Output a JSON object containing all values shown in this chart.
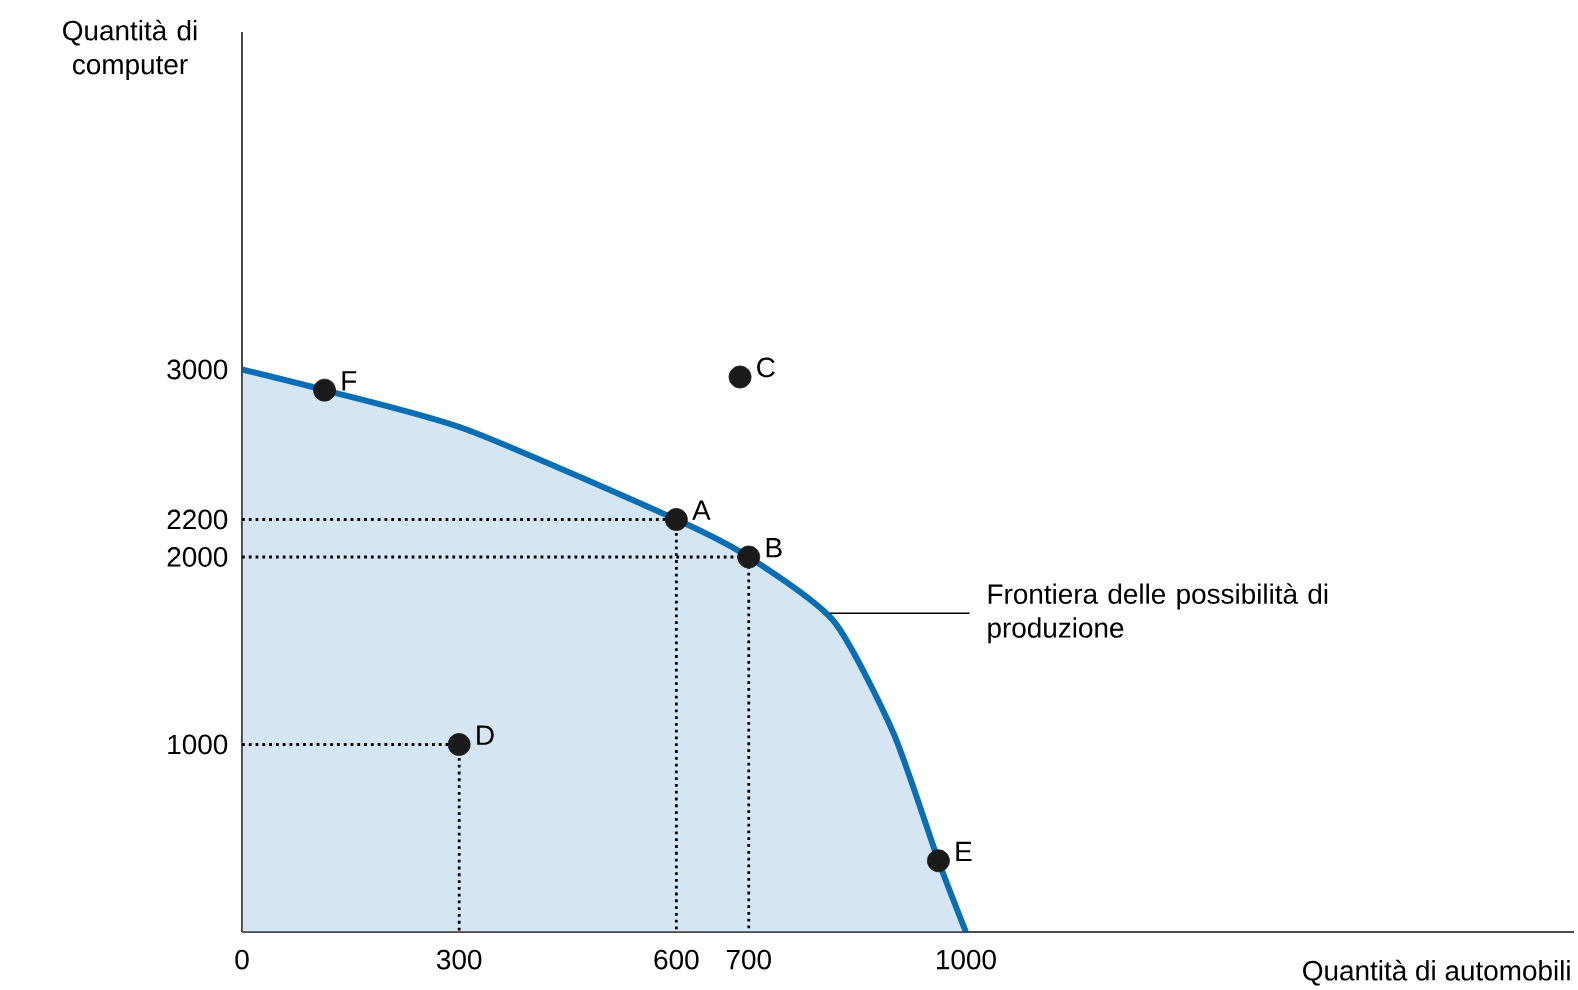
{
  "chart_data": {
    "type": "area",
    "xlabel": "Quantità di automobili",
    "ylabel": "Quantità di computer",
    "xlim": [
      0,
      1840
    ],
    "ylim": [
      0,
      4800
    ],
    "xticks": [
      0,
      300,
      600,
      700,
      1000
    ],
    "yticks": [
      1000,
      2000,
      2200,
      3000
    ],
    "grid": false,
    "series": [
      {
        "name": "Frontiera delle possibilità di produzione",
        "color": "#0a6eb4",
        "x": [
          0,
          114,
          310,
          600,
          700,
          817,
          900,
          962,
          1000
        ],
        "values": [
          3000,
          2890,
          2680,
          2200,
          2000,
          1660,
          1060,
          380,
          0
        ]
      },
      {
        "type": "line",
        "line_style": "dotted",
        "color": "#000000",
        "x": [
          0,
          600,
          600
        ],
        "values": [
          2200,
          2200,
          0
        ]
      },
      {
        "type": "line",
        "line_style": "dotted",
        "color": "#000000",
        "x": [
          0,
          700,
          700
        ],
        "values": [
          2000,
          2000,
          0
        ]
      },
      {
        "type": "line",
        "line_style": "dotted",
        "color": "#000000",
        "x": [
          0,
          300,
          300
        ],
        "values": [
          1000,
          1000,
          0
        ]
      },
      {
        "type": "scatter",
        "color": "#1a1a1a",
        "x": [
          600,
          700,
          688,
          300,
          962,
          114
        ],
        "values": [
          2200,
          2000,
          2960,
          1000,
          380,
          2890
        ]
      }
    ],
    "annotations": [
      {
        "text": "A",
        "x": 600,
        "y": 2200
      },
      {
        "text": "B",
        "x": 700,
        "y": 2000
      },
      {
        "text": "C",
        "x": 688,
        "y": 2960
      },
      {
        "text": "D",
        "x": 300,
        "y": 1000
      },
      {
        "text": "E",
        "x": 962,
        "y": 380
      },
      {
        "text": "F",
        "x": 114,
        "y": 2890
      }
    ]
  }
}
